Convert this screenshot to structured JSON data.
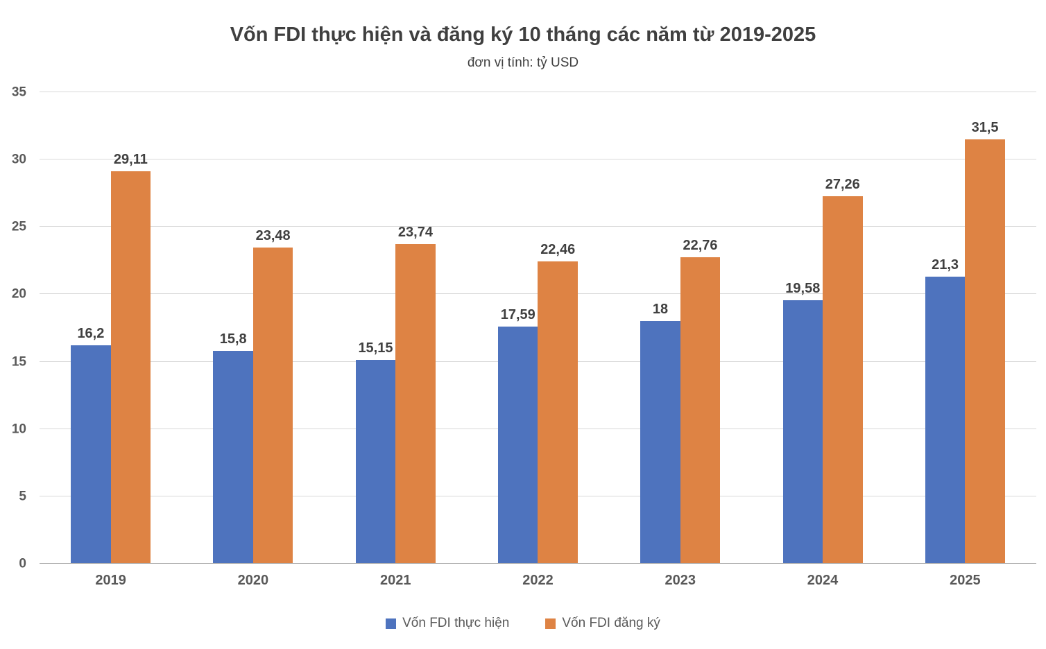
{
  "chart_data": {
    "type": "bar",
    "title": "Vốn FDI thực hiện và đăng ký 10 tháng các năm từ 2019-2025",
    "subtitle": "đơn vị tính: tỷ USD",
    "categories": [
      "2019",
      "2020",
      "2021",
      "2022",
      "2023",
      "2024",
      "2025"
    ],
    "series": [
      {
        "name": "Vốn FDI thực hiện",
        "color": "#4e73be",
        "values": [
          16.2,
          15.8,
          15.15,
          17.59,
          18,
          19.58,
          21.3
        ],
        "labels": [
          "16,2",
          "15,8",
          "15,15",
          "17,59",
          "18",
          "19,58",
          "21,3"
        ]
      },
      {
        "name": "Vốn FDI đăng ký",
        "color": "#de8344",
        "values": [
          29.11,
          23.48,
          23.74,
          22.46,
          22.76,
          27.26,
          31.5
        ],
        "labels": [
          "29,11",
          "23,48",
          "23,74",
          "22,46",
          "22,76",
          "27,26",
          "31,5"
        ]
      }
    ],
    "ylabel": "",
    "xlabel": "",
    "ylim": [
      0,
      35
    ],
    "yticks": [
      0,
      5,
      10,
      15,
      20,
      25,
      30,
      35
    ],
    "grid": true,
    "legend_position": "bottom",
    "colors": {
      "gridline": "#d9d9d9",
      "axis_line": "#a6a6a6",
      "tick_text": "#595959",
      "data_label_text": "#404040",
      "title_text": "#3f3f3f",
      "background": "#ffffff"
    }
  }
}
